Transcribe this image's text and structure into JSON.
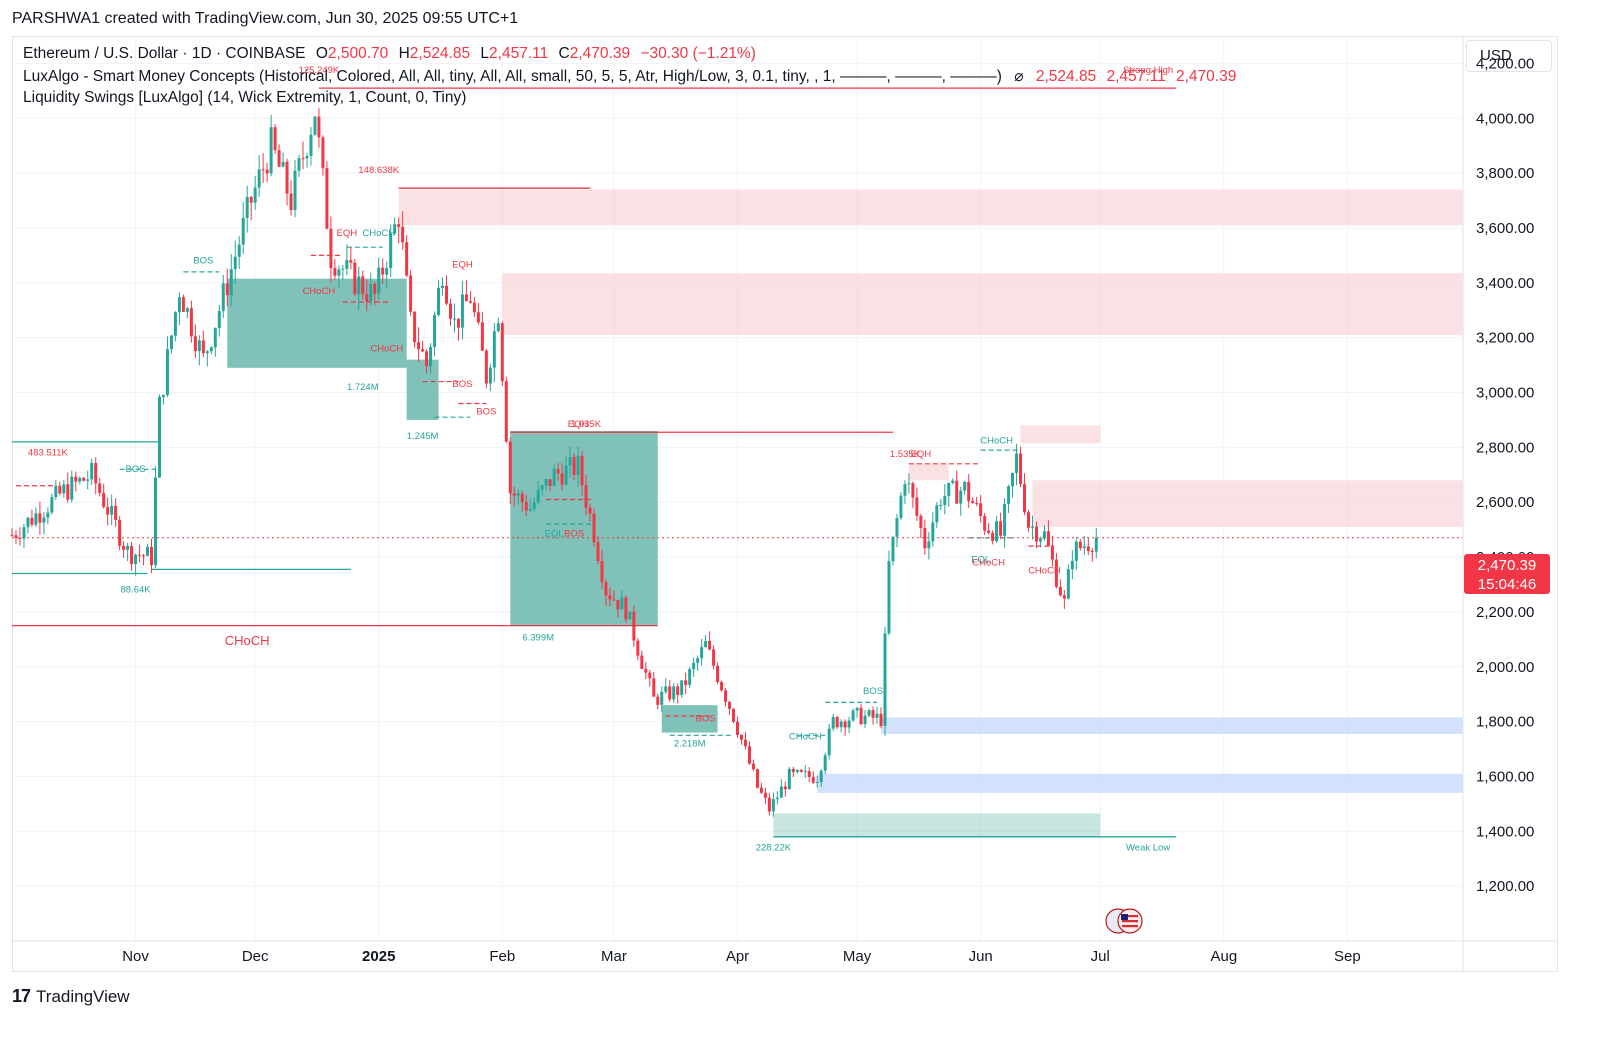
{
  "header": {
    "created_line": "PARSHWA1 created with TradingView.com, Jun 30, 2025 09:55 UTC+1"
  },
  "legend": {
    "symbol": "Ethereum / U.S. Dollar · 1D · COINBASE",
    "ohlc": {
      "o_label": "O",
      "o": "2,500.70",
      "h_label": "H",
      "h": "2,524.85",
      "l_label": "L",
      "l": "2,457.11",
      "c_label": "C",
      "c": "2,470.39",
      "change": "−30.30 (−1.21%)"
    },
    "indicator1": "LuxAlgo - Smart Money Concepts (Historical, Colored, All, All, tiny, All, All, small, 50, 5, 5, Atr, High/Low, 3, 0.1, tiny, , 1, ———, ———, ———)",
    "indicator1_symbol": "⌀",
    "indicator1_values": [
      "2,524.85",
      "2,457.11",
      "2,470.39"
    ],
    "indicator2": "Liquidity Swings [LuxAlgo] (14, Wick Extremity, 1, Count, 0, Tiny)"
  },
  "currency_button": "USD",
  "price_badge": {
    "price": "2,470.39",
    "countdown": "15:04:46"
  },
  "footer": {
    "brand": "TradingView",
    "mark": "17"
  },
  "colors": {
    "up": "#26a69a",
    "down": "#f23645",
    "supply_zone": "#f8c9cc",
    "demand_zone": "#c6d7fb",
    "liq_zone": "#4aa89b"
  },
  "chart_data": {
    "type": "candlestick",
    "symbol": "ETHUSD",
    "interval": "1D",
    "ylim": [
      1000,
      4300
    ],
    "y_ticks": [
      "4,200.00",
      "4,000.00",
      "3,800.00",
      "3,600.00",
      "3,400.00",
      "3,200.00",
      "3,000.00",
      "2,800.00",
      "2,600.00",
      "2,400.00",
      "2,200.00",
      "2,000.00",
      "1,800.00",
      "1,600.00",
      "1,400.00",
      "1,200.00"
    ],
    "x_ticks": [
      "Nov",
      "Dec",
      "2025",
      "Feb",
      "Mar",
      "Apr",
      "May",
      "Jun",
      "Jul",
      "Aug",
      "Sep"
    ],
    "x_tick_dates": [
      "2024-11-01",
      "2024-12-01",
      "2025-01-01",
      "2025-02-01",
      "2025-03-01",
      "2025-04-01",
      "2025-05-01",
      "2025-06-01",
      "2025-07-01",
      "2025-08-01",
      "2025-09-01"
    ],
    "date_range": [
      "2024-10-01",
      "2025-09-30"
    ],
    "last_date": "2025-06-30",
    "last_price": 2470.39,
    "anchors": [
      [
        "2024-10-01",
        2480
      ],
      [
        "2024-10-14",
        2640
      ],
      [
        "2024-10-21",
        2700
      ],
      [
        "2024-10-30",
        2420
      ],
      [
        "2024-11-05",
        2400
      ],
      [
        "2024-11-07",
        2950
      ],
      [
        "2024-11-12",
        3380
      ],
      [
        "2024-11-18",
        3120
      ],
      [
        "2024-11-23",
        3350
      ],
      [
        "2024-11-30",
        3700
      ],
      [
        "2024-12-05",
        3900
      ],
      [
        "2024-12-10",
        3700
      ],
      [
        "2024-12-16",
        4030
      ],
      [
        "2024-12-20",
        3500
      ],
      [
        "2024-12-25",
        3420
      ],
      [
        "2024-12-31",
        3350
      ],
      [
        "2025-01-06",
        3650
      ],
      [
        "2025-01-09",
        3250
      ],
      [
        "2025-01-13",
        3100
      ],
      [
        "2025-01-17",
        3450
      ],
      [
        "2025-01-20",
        3250
      ],
      [
        "2025-01-24",
        3350
      ],
      [
        "2025-01-28",
        3060
      ],
      [
        "2025-01-31",
        3300
      ],
      [
        "2025-02-03",
        2640
      ],
      [
        "2025-02-08",
        2580
      ],
      [
        "2025-02-14",
        2700
      ],
      [
        "2025-02-20",
        2730
      ],
      [
        "2025-02-24",
        2490
      ],
      [
        "2025-02-27",
        2280
      ],
      [
        "2025-03-04",
        2210
      ],
      [
        "2025-03-11",
        1880
      ],
      [
        "2025-03-18",
        1920
      ],
      [
        "2025-03-24",
        2080
      ],
      [
        "2025-03-31",
        1820
      ],
      [
        "2025-04-06",
        1560
      ],
      [
        "2025-04-09",
        1480
      ],
      [
        "2025-04-14",
        1600
      ],
      [
        "2025-04-21",
        1600
      ],
      [
        "2025-04-25",
        1800
      ],
      [
        "2025-05-01",
        1820
      ],
      [
        "2025-05-07",
        1810
      ],
      [
        "2025-05-09",
        2370
      ],
      [
        "2025-05-13",
        2700
      ],
      [
        "2025-05-18",
        2450
      ],
      [
        "2025-05-22",
        2620
      ],
      [
        "2025-05-28",
        2650
      ],
      [
        "2025-06-02",
        2520
      ],
      [
        "2025-06-06",
        2480
      ],
      [
        "2025-06-10",
        2760
      ],
      [
        "2025-06-13",
        2520
      ],
      [
        "2025-06-17",
        2480
      ],
      [
        "2025-06-22",
        2230
      ],
      [
        "2025-06-24",
        2420
      ],
      [
        "2025-06-30",
        2470
      ]
    ],
    "zones": [
      {
        "kind": "supply",
        "from": "2025-01-06",
        "to": "2025-09-30",
        "top": 3740,
        "bottom": 3610
      },
      {
        "kind": "supply",
        "from": "2025-02-01",
        "to": "2025-09-30",
        "top": 3435,
        "bottom": 3210
      },
      {
        "kind": "supply",
        "from": "2025-06-11",
        "to": "2025-07-01",
        "top": 2880,
        "bottom": 2815
      },
      {
        "kind": "supply",
        "from": "2025-06-14",
        "to": "2025-09-30",
        "top": 2680,
        "bottom": 2510
      },
      {
        "kind": "supply",
        "from": "2025-05-14",
        "to": "2025-05-24",
        "top": 2740,
        "bottom": 2680
      },
      {
        "kind": "demand",
        "from": "2025-05-07",
        "to": "2025-09-30",
        "top": 1815,
        "bottom": 1755
      },
      {
        "kind": "demand",
        "from": "2025-04-21",
        "to": "2025-09-30",
        "top": 1610,
        "bottom": 1540
      },
      {
        "kind": "liq_light",
        "from": "2025-04-10",
        "to": "2025-07-01",
        "top": 1465,
        "bottom": 1380
      },
      {
        "kind": "liq",
        "from": "2024-11-24",
        "to": "2025-01-08",
        "top": 3415,
        "bottom": 3090
      },
      {
        "kind": "liq",
        "from": "2025-01-08",
        "to": "2025-01-16",
        "top": 3120,
        "bottom": 2900
      },
      {
        "kind": "liq",
        "from": "2025-02-03",
        "to": "2025-03-12",
        "top": 2860,
        "bottom": 2150
      },
      {
        "kind": "liq",
        "from": "2025-03-13",
        "to": "2025-03-27",
        "top": 1860,
        "bottom": 1760
      }
    ],
    "levels": [
      {
        "color": "#f23645",
        "from": "2024-12-17",
        "to": "2025-07-20",
        "price": 4110
      },
      {
        "color": "#f23645",
        "from": "2025-01-06",
        "to": "2025-02-23",
        "price": 3745
      },
      {
        "color": "#f23645",
        "from": "2025-02-03",
        "to": "2025-05-10",
        "price": 2855
      },
      {
        "color": "#f23645",
        "from": "2024-10-01",
        "to": "2025-03-12",
        "price": 2150
      },
      {
        "color": "#26a69a",
        "from": "2024-10-01",
        "to": "2024-11-07",
        "price": 2820
      },
      {
        "color": "#26a69a",
        "from": "2024-10-01",
        "to": "2024-11-04",
        "price": 2340
      },
      {
        "color": "#26a69a",
        "from": "2024-11-05",
        "to": "2024-12-25",
        "price": 2355
      },
      {
        "color": "#26a69a",
        "from": "2025-04-10",
        "to": "2025-07-20",
        "price": 1380
      }
    ],
    "dashed_levels": [
      {
        "color": "#26a69a",
        "from": "2024-11-13",
        "to": "2024-11-22",
        "price": 3440
      },
      {
        "color": "#26a69a",
        "from": "2024-12-24",
        "to": "2025-01-02",
        "price": 3530
      },
      {
        "color": "#f23645",
        "from": "2024-12-15",
        "to": "2024-12-23",
        "price": 3500
      },
      {
        "color": "#f23645",
        "from": "2024-12-23",
        "to": "2025-01-04",
        "price": 3330
      },
      {
        "color": "#f23645",
        "from": "2025-01-12",
        "to": "2025-01-21",
        "price": 3040
      },
      {
        "color": "#f23645",
        "from": "2025-01-21",
        "to": "2025-01-28",
        "price": 2960
      },
      {
        "color": "#26a69a",
        "from": "2025-01-15",
        "to": "2025-01-24",
        "price": 2910
      },
      {
        "color": "#26a69a",
        "from": "2024-10-28",
        "to": "2024-11-06",
        "price": 2720
      },
      {
        "color": "#f23645",
        "from": "2024-10-02",
        "to": "2024-10-12",
        "price": 2660
      },
      {
        "color": "#26a69a",
        "from": "2025-02-12",
        "to": "2025-02-24",
        "price": 2520
      },
      {
        "color": "#f23645",
        "from": "2025-02-12",
        "to": "2025-02-24",
        "price": 2610
      },
      {
        "color": "#f23645",
        "from": "2025-03-14",
        "to": "2025-03-25",
        "price": 1820
      },
      {
        "color": "#26a69a",
        "from": "2025-03-15",
        "to": "2025-03-31",
        "price": 1750
      },
      {
        "color": "#26a69a",
        "from": "2025-04-16",
        "to": "2025-04-23",
        "price": 1750
      },
      {
        "color": "#26a69a",
        "from": "2025-04-23",
        "to": "2025-05-06",
        "price": 1870
      },
      {
        "color": "#f23645",
        "from": "2025-05-14",
        "to": "2025-06-01",
        "price": 2740
      },
      {
        "color": "#26a69a",
        "from": "2025-06-01",
        "to": "2025-06-11",
        "price": 2790
      },
      {
        "color": "#26a69a",
        "from": "2025-05-29",
        "to": "2025-06-09",
        "price": 2470
      },
      {
        "color": "#f23645",
        "from": "2025-06-13",
        "to": "2025-06-19",
        "price": 2440
      }
    ],
    "labels": [
      {
        "text": "125.249K",
        "date": "2024-12-17",
        "price": 4165,
        "color": "#f23645"
      },
      {
        "text": "Strong High",
        "date": "2025-07-13",
        "price": 4165,
        "color": "#f23645"
      },
      {
        "text": "148.638K",
        "date": "2025-01-01",
        "price": 3800,
        "color": "#f23645"
      },
      {
        "text": "BOS",
        "date": "2024-11-18",
        "price": 3470,
        "color": "#26a69a"
      },
      {
        "text": "EQH",
        "date": "2024-12-24",
        "price": 3570,
        "color": "#f23645"
      },
      {
        "text": "CHoCH",
        "date": "2025-01-01",
        "price": 3570,
        "color": "#26a69a"
      },
      {
        "text": "CHoCH",
        "date": "2024-12-17",
        "price": 3360,
        "color": "#f23645"
      },
      {
        "text": "EQH",
        "date": "2025-01-22",
        "price": 3455,
        "color": "#f23645"
      },
      {
        "text": "CHoCH",
        "date": "2025-01-03",
        "price": 3150,
        "color": "#f23645"
      },
      {
        "text": "1.724M",
        "date": "2024-12-28",
        "price": 3010,
        "color": "#26a69a"
      },
      {
        "text": "BOS",
        "date": "2025-01-22",
        "price": 3020,
        "color": "#f23645"
      },
      {
        "text": "BOS",
        "date": "2025-01-28",
        "price": 2920,
        "color": "#f23645"
      },
      {
        "text": "1.245M",
        "date": "2025-01-12",
        "price": 2830,
        "color": "#26a69a"
      },
      {
        "text": "483.511K",
        "date": "2024-10-10",
        "price": 2770,
        "color": "#f23645"
      },
      {
        "text": "BOS",
        "date": "2024-11-01",
        "price": 2710,
        "color": "#26a69a"
      },
      {
        "text": "88.64K",
        "date": "2024-11-01",
        "price": 2270,
        "color": "#26a69a"
      },
      {
        "text": "CHoCH",
        "date": "2024-11-29",
        "price": 2080,
        "color": "#f23645"
      },
      {
        "text": "EQH",
        "date": "2025-02-20",
        "price": 2875,
        "color": "#f23645"
      },
      {
        "text": "1.035K",
        "date": "2025-02-22",
        "price": 2875,
        "color": "#f23645"
      },
      {
        "text": "EQL",
        "date": "2025-02-14",
        "price": 2475,
        "color": "#26a69a"
      },
      {
        "text": "BOS",
        "date": "2025-02-19",
        "price": 2475,
        "color": "#f23645"
      },
      {
        "text": "6.399M",
        "date": "2025-02-10",
        "price": 2095,
        "color": "#26a69a"
      },
      {
        "text": "BOS",
        "date": "2025-03-24",
        "price": 1800,
        "color": "#f23645"
      },
      {
        "text": "2.218M",
        "date": "2025-03-20",
        "price": 1710,
        "color": "#26a69a"
      },
      {
        "text": "CHoCH",
        "date": "2025-04-18",
        "price": 1735,
        "color": "#26a69a"
      },
      {
        "text": "BOS",
        "date": "2025-05-05",
        "price": 1900,
        "color": "#26a69a"
      },
      {
        "text": "228.22K",
        "date": "2025-04-10",
        "price": 1330,
        "color": "#26a69a"
      },
      {
        "text": "Weak Low",
        "date": "2025-07-13",
        "price": 1330,
        "color": "#26a69a"
      },
      {
        "text": "1.535K",
        "date": "2025-05-13",
        "price": 2765,
        "color": "#f23645"
      },
      {
        "text": "EQH",
        "date": "2025-05-17",
        "price": 2765,
        "color": "#f23645"
      },
      {
        "text": "CHoCH",
        "date": "2025-06-05",
        "price": 2815,
        "color": "#26a69a"
      },
      {
        "text": "EQL",
        "date": "2025-06-01",
        "price": 2380,
        "color": "#26a69a"
      },
      {
        "text": "CHoCH",
        "date": "2025-06-03",
        "price": 2370,
        "color": "#f23645"
      },
      {
        "text": "CHoCH",
        "date": "2025-06-17",
        "price": 2340,
        "color": "#f23645"
      }
    ]
  }
}
